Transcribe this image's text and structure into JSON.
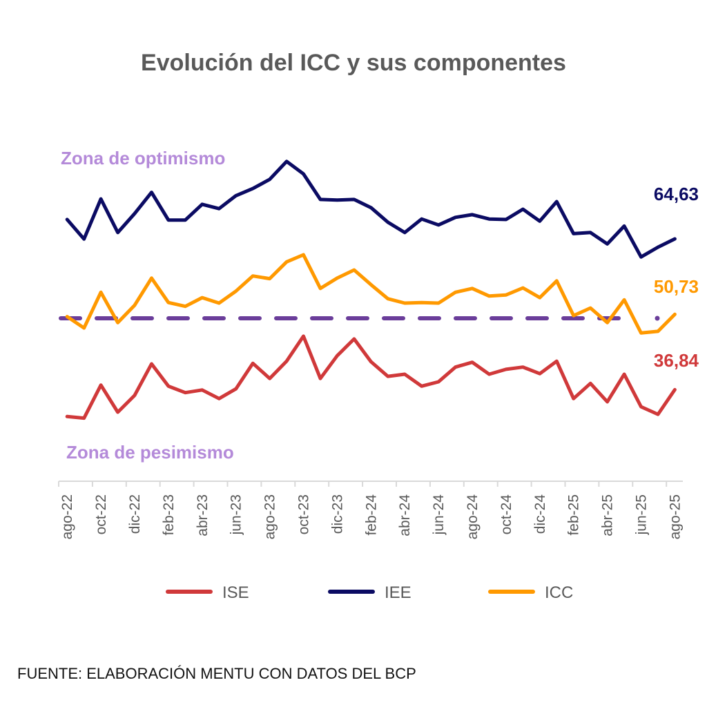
{
  "chart_data": {
    "type": "line",
    "title": "Evolución del ICC y sus componentes",
    "xlabel": "",
    "ylabel": "",
    "grid": false,
    "legend_position": "bottom",
    "x": [
      "ago-22",
      "sep-22",
      "oct-22",
      "nov-22",
      "dic-22",
      "ene-23",
      "feb-23",
      "mar-23",
      "abr-23",
      "may-23",
      "jun-23",
      "jul-23",
      "ago-23",
      "sep-23",
      "oct-23",
      "nov-23",
      "dic-23",
      "ene-24",
      "feb-24",
      "mar-24",
      "abr-24",
      "may-24",
      "jun-24",
      "jul-24",
      "ago-24",
      "sep-24",
      "oct-24",
      "nov-24",
      "dic-24",
      "ene-25",
      "feb-25",
      "mar-25",
      "abr-25",
      "may-25",
      "jun-25",
      "jul-25",
      "ago-25"
    ],
    "tick_labels": [
      "ago-22",
      "oct-22",
      "dic-22",
      "feb-23",
      "abr-23",
      "jun-23",
      "ago-23",
      "oct-23",
      "dic-23",
      "feb-24",
      "abr-24",
      "jun-24",
      "ago-24",
      "oct-24",
      "dic-24",
      "feb-25",
      "abr-25",
      "jun-25",
      "ago-25"
    ],
    "reference_line": {
      "value": 50,
      "style": "dashed",
      "color": "#6a3d9a"
    },
    "annotations": {
      "optimism": "Zona de optimismo",
      "pessimism": "Zona de pesimismo",
      "color": "#b48ad9"
    },
    "series": [
      {
        "name": "ISE",
        "color": "#d0393a",
        "end_label": "36,84",
        "values": [
          31.9,
          31.6,
          37.7,
          32.7,
          35.8,
          41.6,
          37.5,
          36.3,
          36.8,
          35.2,
          37.0,
          41.7,
          38.9,
          42.1,
          46.7,
          38.9,
          43.1,
          46.2,
          42.0,
          39.3,
          39.7,
          37.5,
          38.3,
          41.0,
          41.9,
          39.7,
          40.6,
          41.0,
          39.8,
          42.1,
          35.2,
          38.0,
          34.6,
          39.7,
          33.7,
          32.3,
          36.84
        ]
      },
      {
        "name": "IEE",
        "color": "#0b0b63",
        "end_label": "64,63",
        "values": [
          68.2,
          64.6,
          72.0,
          65.8,
          69.3,
          73.2,
          68.1,
          68.1,
          71.0,
          70.2,
          72.6,
          73.9,
          75.6,
          78.9,
          76.6,
          71.9,
          71.8,
          71.9,
          70.4,
          67.7,
          65.8,
          68.3,
          67.2,
          68.6,
          69.1,
          68.3,
          68.2,
          70.1,
          67.9,
          71.5,
          65.6,
          65.8,
          63.7,
          67.0,
          61.3,
          63.1,
          64.63
        ]
      },
      {
        "name": "ICC",
        "color": "#ff9900",
        "end_label": "50,73",
        "values": [
          50.3,
          48.2,
          54.8,
          49.2,
          52.4,
          57.4,
          52.9,
          52.2,
          53.8,
          52.8,
          55.0,
          57.8,
          57.3,
          60.4,
          61.7,
          55.5,
          57.4,
          58.9,
          56.2,
          53.6,
          52.8,
          52.9,
          52.8,
          54.8,
          55.5,
          54.1,
          54.3,
          55.6,
          53.8,
          56.9,
          50.5,
          51.9,
          49.2,
          53.4,
          47.3,
          47.6,
          50.73
        ]
      }
    ],
    "source": "FUENTE: ELABORACIÓN MENTU CON DATOS DEL BCP"
  }
}
